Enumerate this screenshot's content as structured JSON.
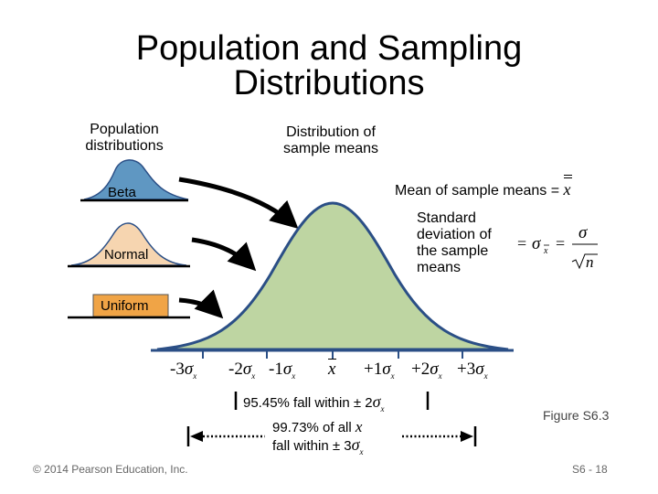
{
  "title": {
    "line1": "Population and Sampling",
    "line2": "Distributions"
  },
  "headers": {
    "population_line1": "Population",
    "population_line2": "distributions",
    "sample_line1": "Distribution of",
    "sample_line2": "sample means"
  },
  "population_labels": {
    "beta": "Beta",
    "normal": "Normal",
    "uniform": "Uniform"
  },
  "annotations": {
    "mean_label": "Mean of sample means = ",
    "std_line1": "Standard",
    "std_line2": "deviation of",
    "std_line3": "the sample",
    "std_line4": "means"
  },
  "axis_ticks": [
    "-3",
    "-2",
    "-1",
    "",
    "+1",
    "+2",
    "+3"
  ],
  "coverage": {
    "within2_prefix": "95.45% fall within ± 2",
    "within3_line1": "99.73% of all",
    "within3_line2_prefix": "fall within ± 3"
  },
  "figure_label": "Figure S6.3",
  "footer": {
    "copyright": "© 2014 Pearson Education, Inc.",
    "page": "S6 - 18"
  },
  "colors": {
    "beta_fill": "#5f97c2",
    "normal_fill": "#f6d5b0",
    "uniform_fill": "#f0a446",
    "sampling_fill": "#bed5a2",
    "curve_stroke": "#2b4f86"
  }
}
